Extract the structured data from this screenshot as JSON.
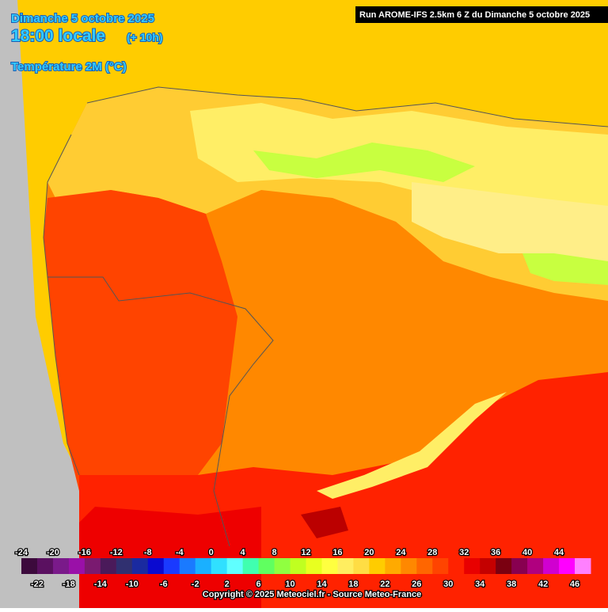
{
  "header": {
    "date": "Dimanche 5 octobre 2025",
    "time": "18:00 locale",
    "offset": "(+ 10h)",
    "variable": "Température 2M (°C)",
    "run": "Run AROME-IFS 2.5km 6 Z du Dimanche 5 octobre 2025"
  },
  "legend": {
    "items": [
      {
        "value": -24,
        "color": "#3c0a3c"
      },
      {
        "value": -22,
        "color": "#5a1060"
      },
      {
        "value": -20,
        "color": "#7a1a8a"
      },
      {
        "value": -18,
        "color": "#9a10a8"
      },
      {
        "value": -16,
        "color": "#7a1a70"
      },
      {
        "value": -14,
        "color": "#4a1a5a"
      },
      {
        "value": -12,
        "color": "#303070"
      },
      {
        "value": -10,
        "color": "#1a2aa0"
      },
      {
        "value": -8,
        "color": "#0a0ad0"
      },
      {
        "value": -6,
        "color": "#1a3aff"
      },
      {
        "value": -4,
        "color": "#1a7aff"
      },
      {
        "value": -2,
        "color": "#1ab0ff"
      },
      {
        "value": 0,
        "color": "#30e0ff"
      },
      {
        "value": 2,
        "color": "#60ffff"
      },
      {
        "value": 4,
        "color": "#40ffb0"
      },
      {
        "value": 6,
        "color": "#60ff60"
      },
      {
        "value": 8,
        "color": "#90ff40"
      },
      {
        "value": 10,
        "color": "#c0ff20"
      },
      {
        "value": 12,
        "color": "#e8ff20"
      },
      {
        "value": 14,
        "color": "#ffff40"
      },
      {
        "value": 16,
        "color": "#ffee60"
      },
      {
        "value": 18,
        "color": "#ffdd44"
      },
      {
        "value": 20,
        "color": "#ffcc00"
      },
      {
        "value": 22,
        "color": "#ffaa00"
      },
      {
        "value": 24,
        "color": "#ff8800"
      },
      {
        "value": 26,
        "color": "#ff6600"
      },
      {
        "value": 28,
        "color": "#ff4400"
      },
      {
        "value": 30,
        "color": "#ff2200"
      },
      {
        "value": 32,
        "color": "#e80000"
      },
      {
        "value": 34,
        "color": "#c40000"
      },
      {
        "value": 36,
        "color": "#7a0010"
      },
      {
        "value": 38,
        "color": "#880050"
      },
      {
        "value": 40,
        "color": "#b0007f"
      },
      {
        "value": 42,
        "color": "#d000d0"
      },
      {
        "value": 44,
        "color": "#ff00ff"
      },
      {
        "value": 46,
        "color": "#ff80ff"
      }
    ]
  },
  "footer": {
    "copyright": "Copyright © 2025 Meteociel.fr - Source Meteo-France"
  }
}
